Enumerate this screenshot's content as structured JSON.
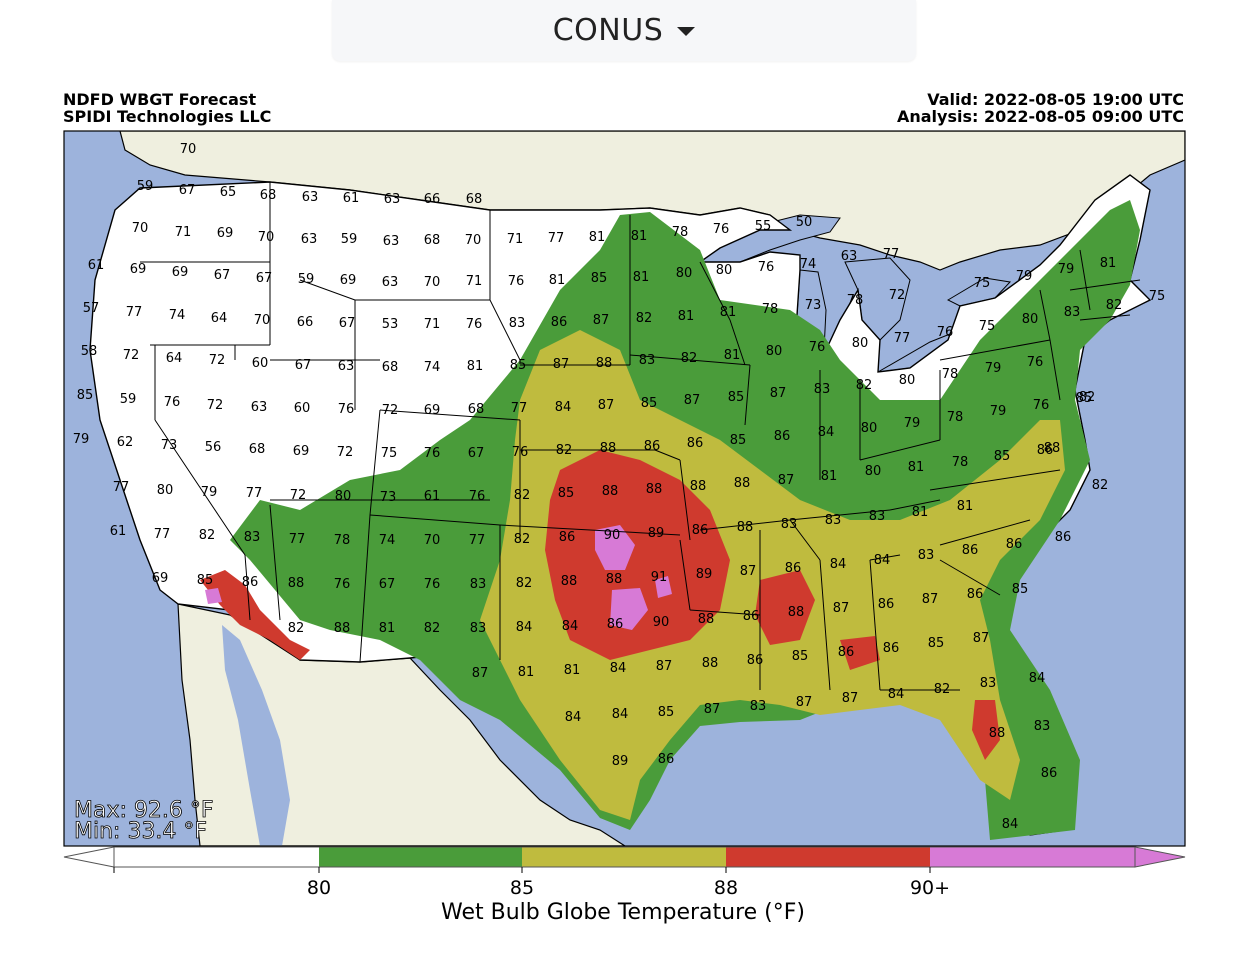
{
  "region_selector": {
    "label": "CONUS",
    "icon": "caret-down-icon"
  },
  "header": {
    "title": "NDFD WBGT Forecast",
    "org": "SPIDI Technologies LLC",
    "valid": "Valid: 2022-08-05 19:00 UTC",
    "analysis": "Analysis: 2022-08-05 09:00 UTC"
  },
  "stats": {
    "max": "Max: 92.6 °F",
    "min": "Min: 33.4 °F"
  },
  "colors": {
    "ocean": "#9db3dc",
    "land_foreign": "#efefdf",
    "white_band": "#ffffff",
    "green": "#4a9c3a",
    "olive": "#bfbb3e",
    "red": "#cf3a2e",
    "magenta": "#d77ad6"
  },
  "colorbar": {
    "title": "Wet Bulb Globe Temperature (°F)",
    "ticks": [
      "80",
      "85",
      "88",
      "90+"
    ]
  },
  "station_values": [
    "70",
    "59",
    "67",
    "65",
    "68",
    "63",
    "61",
    "63",
    "66",
    "68",
    "70",
    "71",
    "69",
    "70",
    "63",
    "59",
    "63",
    "68",
    "70",
    "71",
    "77",
    "81",
    "81",
    "78",
    "76",
    "55",
    "50",
    "61",
    "69",
    "69",
    "67",
    "67",
    "59",
    "69",
    "63",
    "70",
    "71",
    "76",
    "81",
    "85",
    "81",
    "80",
    "80",
    "76",
    "74",
    "63",
    "77",
    "57",
    "77",
    "74",
    "64",
    "70",
    "66",
    "67",
    "53",
    "71",
    "76",
    "83",
    "86",
    "87",
    "82",
    "81",
    "81",
    "78",
    "73",
    "78",
    "72",
    "75",
    "79",
    "79",
    "81",
    "75",
    "58",
    "72",
    "64",
    "72",
    "60",
    "67",
    "63",
    "68",
    "74",
    "81",
    "85",
    "87",
    "88",
    "83",
    "82",
    "81",
    "80",
    "76",
    "80",
    "77",
    "76",
    "75",
    "80",
    "83",
    "82",
    "85",
    "59",
    "76",
    "72",
    "63",
    "60",
    "76",
    "72",
    "69",
    "68",
    "77",
    "84",
    "87",
    "85",
    "87",
    "85",
    "87",
    "83",
    "82",
    "80",
    "78",
    "79",
    "76",
    "82",
    "79",
    "62",
    "73",
    "56",
    "68",
    "69",
    "72",
    "75",
    "76",
    "67",
    "76",
    "82",
    "88",
    "86",
    "86",
    "85",
    "86",
    "84",
    "80",
    "79",
    "78",
    "79",
    "76",
    "85",
    "88",
    "77",
    "80",
    "79",
    "77",
    "72",
    "80",
    "73",
    "61",
    "76",
    "82",
    "85",
    "88",
    "88",
    "88",
    "88",
    "87",
    "81",
    "80",
    "81",
    "78",
    "85",
    "86",
    "82",
    "61",
    "77",
    "82",
    "83",
    "77",
    "78",
    "74",
    "70",
    "77",
    "82",
    "86",
    "90",
    "89",
    "86",
    "88",
    "83",
    "83",
    "83",
    "81",
    "81",
    "69",
    "85",
    "86",
    "88",
    "76",
    "67",
    "76",
    "83",
    "82",
    "88",
    "88",
    "91",
    "89",
    "87",
    "86",
    "84",
    "84",
    "83",
    "86",
    "86",
    "86",
    "82",
    "88",
    "81",
    "82",
    "83",
    "84",
    "84",
    "86",
    "90",
    "88",
    "86",
    "88",
    "87",
    "86",
    "87",
    "86",
    "85",
    "87",
    "81",
    "81",
    "84",
    "87",
    "88",
    "86",
    "85",
    "86",
    "86",
    "85",
    "87",
    "84",
    "84",
    "85",
    "87",
    "83",
    "87",
    "87",
    "84",
    "82",
    "83",
    "84",
    "89",
    "86",
    "88",
    "83",
    "86",
    "84"
  ]
}
